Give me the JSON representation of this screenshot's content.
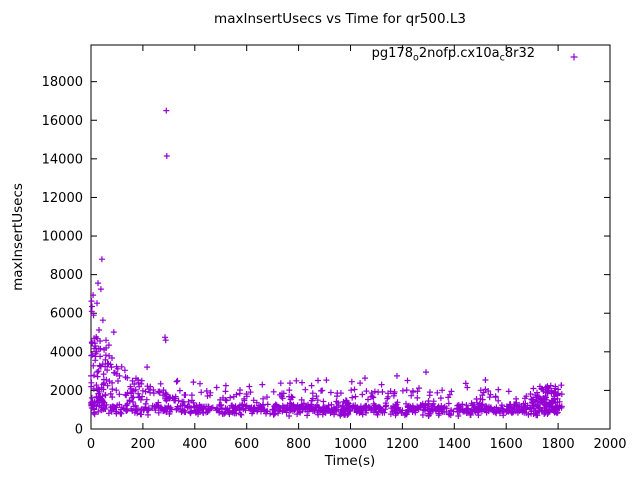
{
  "window": {
    "background": "#ffffff",
    "text_color": "#000000"
  },
  "legend": {
    "part1": "pg178",
    "sub1": "o",
    "part2": "2nofp.cx10a",
    "sub2": "c",
    "part3": "8r32",
    "marker_glyph": "+"
  },
  "chart_data": {
    "type": "scatter",
    "title": "maxInsertUsecs vs Time for qr500.L3",
    "xlabel": "Time(s)",
    "ylabel": "maxInsertUsecs",
    "xlim": [
      0,
      2000
    ],
    "ylim": [
      0,
      19900
    ],
    "xticks": [
      0,
      200,
      400,
      600,
      800,
      1000,
      1200,
      1400,
      1600,
      1800,
      2000
    ],
    "yticks": [
      0,
      2000,
      4000,
      6000,
      8000,
      10000,
      12000,
      14000,
      16000,
      18000
    ],
    "grid": false,
    "legend_position": "top-right-inside",
    "series": [
      {
        "name": "pg178_o2nofp.cx10a_c8r32",
        "marker": "+",
        "color": "#9400d3",
        "band_summary": "Dense band of points between ~650 and ~1400 usecs across the full 0-1815 s range; moderate scatter 1400-2050; sparse points to ~2650; elevated decaying cloud up to ~4800 for t < 380 s; burst of high values up to ~8800 for t < 60 s; rise to ~2300 usecs in the final 120 s; data ends near t = 1815 s.",
        "outlier_points": [
          [
            2,
            6630
          ],
          [
            3,
            6100
          ],
          [
            4,
            6350
          ],
          [
            8,
            6940
          ],
          [
            10,
            5900
          ],
          [
            12,
            4700
          ],
          [
            15,
            4450
          ],
          [
            16,
            4300
          ],
          [
            18,
            3900
          ],
          [
            23,
            6520
          ],
          [
            27,
            7560
          ],
          [
            31,
            5130
          ],
          [
            38,
            7250
          ],
          [
            42,
            8800
          ],
          [
            46,
            5640
          ],
          [
            58,
            4200
          ],
          [
            69,
            4350
          ],
          [
            75,
            3350
          ],
          [
            81,
            3680
          ],
          [
            88,
            5020
          ],
          [
            92,
            2900
          ],
          [
            110,
            2750
          ],
          [
            140,
            2650
          ],
          [
            160,
            2500
          ],
          [
            181,
            2540
          ],
          [
            216,
            3210
          ],
          [
            240,
            2020
          ],
          [
            285,
            4750
          ],
          [
            288,
            4600
          ],
          [
            290,
            16500
          ],
          [
            292,
            14150
          ],
          [
            330,
            2450
          ],
          [
            420,
            2350
          ],
          [
            520,
            2250
          ],
          [
            574,
            2020
          ],
          [
            610,
            2200
          ],
          [
            660,
            2300
          ],
          [
            767,
            2380
          ],
          [
            850,
            2250
          ],
          [
            963,
            1860
          ],
          [
            1005,
            2450
          ],
          [
            1037,
            2380
          ],
          [
            1056,
            2640
          ],
          [
            1120,
            2300
          ],
          [
            1179,
            2750
          ],
          [
            1202,
            1980
          ],
          [
            1264,
            2120
          ],
          [
            1291,
            2950
          ],
          [
            1450,
            2150
          ],
          [
            1520,
            2050
          ],
          [
            1610,
            1950
          ],
          [
            1705,
            2100
          ],
          [
            1730,
            2200
          ],
          [
            1752,
            2150
          ],
          [
            1772,
            2250
          ],
          [
            1790,
            2100
          ],
          [
            1800,
            2050
          ]
        ],
        "generator": {
          "seed": 20240601,
          "n_band": 1000,
          "t_max": 1815,
          "core": {
            "vmin": 650,
            "vspan": 750,
            "weight": 0.82
          },
          "mid": {
            "vmin": 1400,
            "vspan": 650,
            "weight": 0.16
          },
          "high": {
            "vmin": 2050,
            "vspan": 600,
            "weight": 0.02
          },
          "early_cloud": {
            "t_limit": 380,
            "prob": 0.38,
            "base": 1400,
            "amp": 3400,
            "falloff": 1.5
          },
          "start_burst": {
            "count": 65,
            "t_span": 60,
            "vmin": 1200,
            "amp": 3600,
            "pow": 2.2
          },
          "end_bump": {
            "count": 60,
            "t_start": 1693,
            "t_span": 122,
            "vmin": 1150,
            "amp": 1150,
            "pow": 1.3
          }
        }
      }
    ]
  }
}
